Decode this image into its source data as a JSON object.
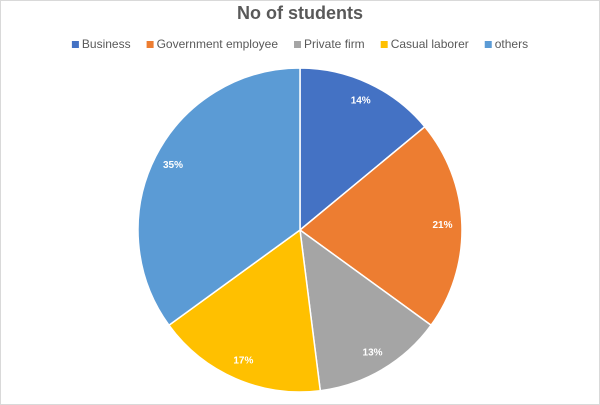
{
  "chart_data": {
    "type": "pie",
    "title": "No of students",
    "categories": [
      "Business",
      "Government employee",
      "Private firm",
      "Casual laborer",
      "others"
    ],
    "values": [
      14,
      21,
      13,
      17,
      35
    ],
    "value_labels": [
      "14%",
      "21%",
      "13%",
      "17%",
      "35%"
    ],
    "colors": [
      "#4472c4",
      "#ed7d31",
      "#a5a5a5",
      "#ffc000",
      "#5b9bd5"
    ],
    "legend": "top"
  }
}
